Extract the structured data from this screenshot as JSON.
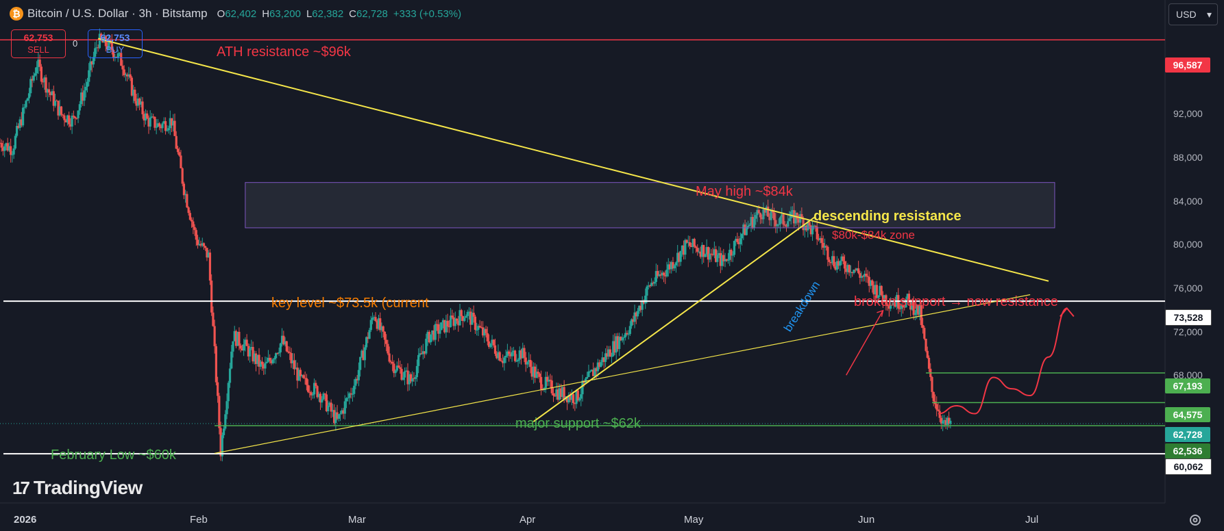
{
  "header": {
    "coin_icon": "bitcoin-icon",
    "coin_glyph": "₿",
    "title": "Bitcoin / U.S. Dollar · 3h · Bitstamp",
    "ohlc": {
      "o_label": "O",
      "o": "62,402",
      "h_label": "H",
      "h": "63,200",
      "l_label": "L",
      "l": "62,382",
      "c_label": "C",
      "c": "62,728",
      "change": "+333 (+0.53%)"
    }
  },
  "trade": {
    "sell_price": "62,753",
    "sell_label": "SELL",
    "buy_price": "62,753",
    "buy_label": "BUY",
    "spread": "0"
  },
  "currency": {
    "value": "USD",
    "chevron": "▾"
  },
  "brand": {
    "logo_text": "TradingView",
    "logo_mark": "17"
  },
  "axis": {
    "y_ticks": [
      "92,000",
      "88,000",
      "84,000",
      "80,000",
      "76,000",
      "72,000",
      "68,000"
    ],
    "x_ticks": [
      "2026",
      "Feb",
      "Mar",
      "Apr",
      "May",
      "Jun",
      "Jul"
    ]
  },
  "price_labels": [
    {
      "name": "ath-price-label",
      "text": "96,587"
    },
    {
      "name": "key-level-price-label",
      "text": "73,528"
    },
    {
      "name": "resistance-67k-price-label",
      "text": "67,193"
    },
    {
      "name": "resistance-64k-price-label",
      "text": "64,575"
    },
    {
      "name": "last-price-label",
      "text": "62,728"
    },
    {
      "name": "support-62k-price-label",
      "text": "62,536"
    },
    {
      "name": "feb-low-price-label",
      "text": "60,062"
    }
  ],
  "annotations": {
    "ath": "ATH resistance ~$96k",
    "may_high": "May high ~$84k",
    "descending": "descending resistance",
    "zone": "$80k-$84k zone",
    "key_level": "key level ~$73.5k (current",
    "broken_support": "broken support → now resistance",
    "breakdown": "breakdown",
    "major_support": "major support ~$62k",
    "feb_low": "February Low ~$60k"
  },
  "colors": {
    "background": "#161a25",
    "up": "#26a69a",
    "down": "#ef5350",
    "red": "#f23645",
    "green": "#4caf50",
    "yellow": "#f5e64a",
    "orange": "#f57c00",
    "blue": "#2962ff"
  },
  "chart_data": {
    "type": "candlestick",
    "symbol": "BTCUSD",
    "interval": "3h",
    "exchange": "Bitstamp",
    "x_range": [
      "2026-01-01",
      "2026-07-10"
    ],
    "ylim": [
      58500,
      99500
    ],
    "key_levels": [
      96587,
      73528,
      67193,
      64575,
      62728,
      62536,
      60062
    ],
    "zone": [
      80000,
      84000
    ],
    "close_path": [
      [
        "2026-01-01",
        87500
      ],
      [
        "2026-01-03",
        87000
      ],
      [
        "2026-01-05",
        90500
      ],
      [
        "2026-01-07",
        94500
      ],
      [
        "2026-01-09",
        92000
      ],
      [
        "2026-01-11",
        90000
      ],
      [
        "2026-01-13",
        89500
      ],
      [
        "2026-01-15",
        92500
      ],
      [
        "2026-01-17",
        96500
      ],
      [
        "2026-01-19",
        96000
      ],
      [
        "2026-01-21",
        94500
      ],
      [
        "2026-01-23",
        91500
      ],
      [
        "2026-01-25",
        89500
      ],
      [
        "2026-01-27",
        89000
      ],
      [
        "2026-01-29",
        89500
      ],
      [
        "2026-01-31",
        83500
      ],
      [
        "2026-02-02",
        79000
      ],
      [
        "2026-02-04",
        77500
      ],
      [
        "2026-02-06",
        60300
      ],
      [
        "2026-02-08",
        70500
      ],
      [
        "2026-02-10",
        69500
      ],
      [
        "2026-02-13",
        67500
      ],
      [
        "2026-02-16",
        70000
      ],
      [
        "2026-02-19",
        66500
      ],
      [
        "2026-02-22",
        65500
      ],
      [
        "2026-02-25",
        62900
      ],
      [
        "2026-02-28",
        66500
      ],
      [
        "2026-03-03",
        72500
      ],
      [
        "2026-03-06",
        68000
      ],
      [
        "2026-03-09",
        66500
      ],
      [
        "2026-03-12",
        70500
      ],
      [
        "2026-03-15",
        71500
      ],
      [
        "2026-03-18",
        72500
      ],
      [
        "2026-03-21",
        70500
      ],
      [
        "2026-03-24",
        68500
      ],
      [
        "2026-03-27",
        69000
      ],
      [
        "2026-03-30",
        66500
      ],
      [
        "2026-04-02",
        65500
      ],
      [
        "2026-04-05",
        65000
      ],
      [
        "2026-04-08",
        67500
      ],
      [
        "2026-04-11",
        69500
      ],
      [
        "2026-04-14",
        71500
      ],
      [
        "2026-04-17",
        75000
      ],
      [
        "2026-04-20",
        76500
      ],
      [
        "2026-04-23",
        78500
      ],
      [
        "2026-04-26",
        78000
      ],
      [
        "2026-04-29",
        77000
      ],
      [
        "2026-05-02",
        79500
      ],
      [
        "2026-05-05",
        81500
      ],
      [
        "2026-05-08",
        80500
      ],
      [
        "2026-05-11",
        81000
      ],
      [
        "2026-05-14",
        79500
      ],
      [
        "2026-05-17",
        77000
      ],
      [
        "2026-05-20",
        76500
      ],
      [
        "2026-05-23",
        75000
      ],
      [
        "2026-05-26",
        73500
      ],
      [
        "2026-05-29",
        73500
      ],
      [
        "2026-05-31",
        72500
      ],
      [
        "2026-06-02",
        65500
      ],
      [
        "2026-06-04",
        62500
      ],
      [
        "2026-06-05",
        62728
      ]
    ]
  }
}
